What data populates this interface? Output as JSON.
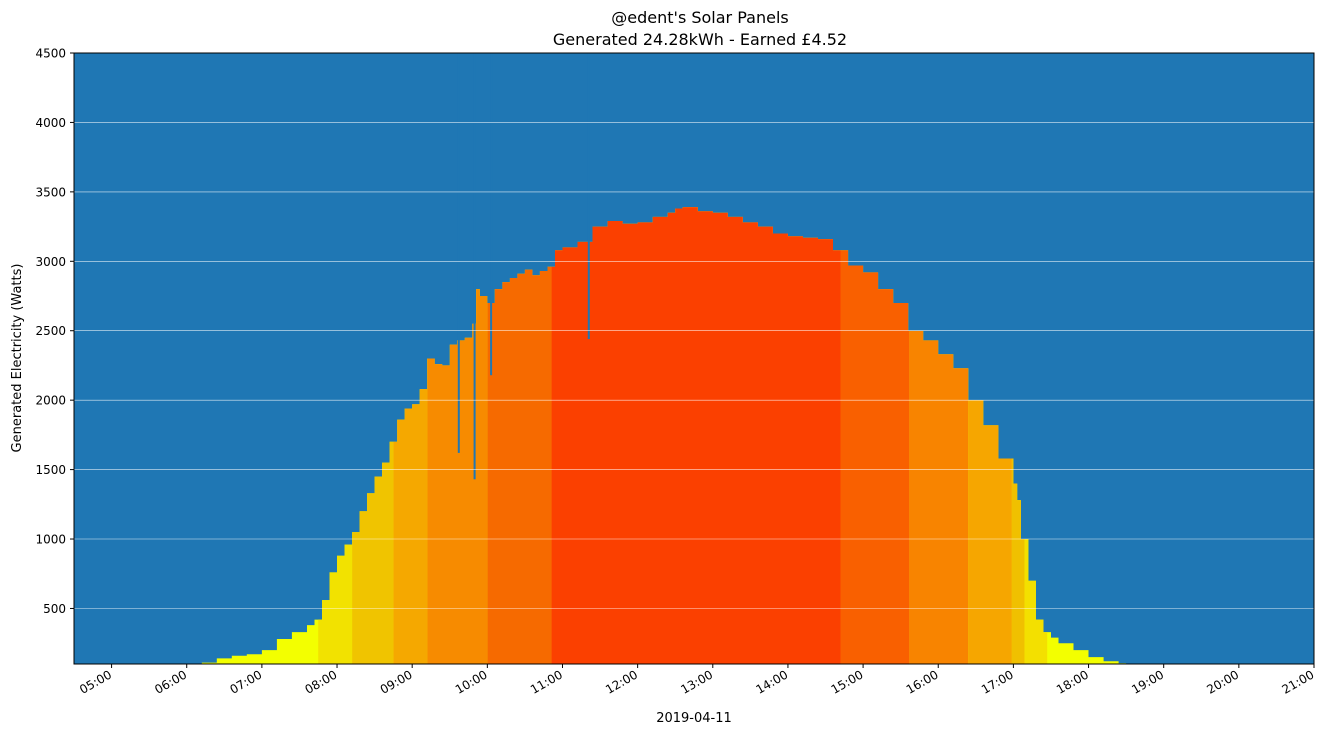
{
  "chart_data": {
    "type": "area",
    "title_line1": "@edent's Solar Panels",
    "title_line2": "Generated 24.28kWh - Earned £4.52",
    "xlabel": "2019-04-11",
    "ylabel": "Generated Electricity (Watts)",
    "ylim": [
      100,
      4500
    ],
    "y_ticks": [
      500,
      1000,
      1500,
      2000,
      2500,
      3000,
      3500,
      4000,
      4500
    ],
    "y_tick_labels": [
      "500",
      "1000",
      "1500",
      "2000",
      "2500",
      "3000",
      "3500",
      "4000",
      "4500"
    ],
    "xlim_hours": [
      4.5,
      21.0
    ],
    "x_ticks_hours": [
      5,
      6,
      7,
      8,
      9,
      10,
      11,
      12,
      13,
      14,
      15,
      16,
      17,
      18,
      19,
      20,
      21
    ],
    "x_tick_labels": [
      "05:00",
      "06:00",
      "07:00",
      "08:00",
      "09:00",
      "10:00",
      "11:00",
      "12:00",
      "13:00",
      "14:00",
      "15:00",
      "16:00",
      "17:00",
      "18:00",
      "19:00",
      "20:00",
      "21:00"
    ],
    "grid": "horizontal",
    "background_color": "#1f77b4",
    "series": [
      {
        "time_hours": [
          6.2,
          6.4,
          6.6,
          6.8,
          7.0,
          7.2,
          7.4,
          7.6,
          7.7,
          7.8,
          7.9,
          8.0,
          8.1,
          8.2,
          8.3,
          8.4,
          8.5,
          8.6,
          8.7,
          8.8,
          8.9,
          9.0,
          9.1,
          9.2,
          9.3,
          9.4,
          9.5,
          9.6,
          9.7,
          9.8,
          9.85,
          9.9,
          10.0,
          10.1,
          10.2,
          10.3,
          10.4,
          10.5,
          10.6,
          10.7,
          10.8,
          10.9,
          11.0,
          11.2,
          11.4,
          11.6,
          11.8,
          12.0,
          12.2,
          12.4,
          12.5,
          12.6,
          12.8,
          13.0,
          13.2,
          13.4,
          13.6,
          13.8,
          14.0,
          14.2,
          14.4,
          14.6,
          14.8,
          15.0,
          15.2,
          15.4,
          15.6,
          15.8,
          16.0,
          16.2,
          16.4,
          16.6,
          16.8,
          17.0,
          17.05,
          17.1,
          17.2,
          17.3,
          17.4,
          17.5,
          17.6,
          17.8,
          18.0,
          18.2,
          18.4,
          18.5
        ],
        "watts": [
          110,
          140,
          160,
          170,
          200,
          280,
          330,
          380,
          420,
          560,
          760,
          880,
          960,
          1050,
          1200,
          1330,
          1450,
          1550,
          1700,
          1860,
          1940,
          1970,
          2080,
          2300,
          2260,
          2250,
          2400,
          2430,
          2450,
          2550,
          2800,
          2750,
          2700,
          2800,
          2850,
          2880,
          2910,
          2940,
          2900,
          2930,
          2960,
          3080,
          3100,
          3140,
          3250,
          3290,
          3270,
          3280,
          3320,
          3350,
          3380,
          3390,
          3360,
          3350,
          3320,
          3280,
          3250,
          3200,
          3180,
          3170,
          3160,
          3080,
          2970,
          2920,
          2800,
          2700,
          2500,
          2430,
          2330,
          2230,
          2000,
          1820,
          1580,
          1400,
          1280,
          1000,
          700,
          420,
          330,
          290,
          250,
          200,
          150,
          120,
          105,
          100
        ]
      }
    ],
    "dropouts": [
      {
        "time_hours": 9.62,
        "watts": 1620
      },
      {
        "time_hours": 9.83,
        "watts": 1430
      },
      {
        "time_hours": 10.05,
        "watts": 2180
      },
      {
        "time_hours": 11.35,
        "watts": 2440
      }
    ],
    "color_bands": [
      {
        "start": 7.75,
        "end": 8.2,
        "color": "#f2e200"
      },
      {
        "start": 8.2,
        "end": 8.75,
        "color": "#f0c400"
      },
      {
        "start": 8.75,
        "end": 9.2,
        "color": "#f5a800"
      },
      {
        "start": 9.2,
        "end": 10.0,
        "color": "#f78b00"
      },
      {
        "start": 10.0,
        "end": 10.85,
        "color": "#f66a00"
      },
      {
        "start": 10.85,
        "end": 14.7,
        "color": "#fb4000"
      },
      {
        "start": 14.7,
        "end": 15.62,
        "color": "#f96000"
      },
      {
        "start": 15.62,
        "end": 16.4,
        "color": "#f88400"
      },
      {
        "start": 16.4,
        "end": 16.98,
        "color": "#f6a600"
      },
      {
        "start": 16.98,
        "end": 17.15,
        "color": "#f0c000"
      },
      {
        "start": 17.15,
        "end": 17.45,
        "color": "#f3e000"
      }
    ],
    "base_fill_color": "#f3ff00"
  }
}
